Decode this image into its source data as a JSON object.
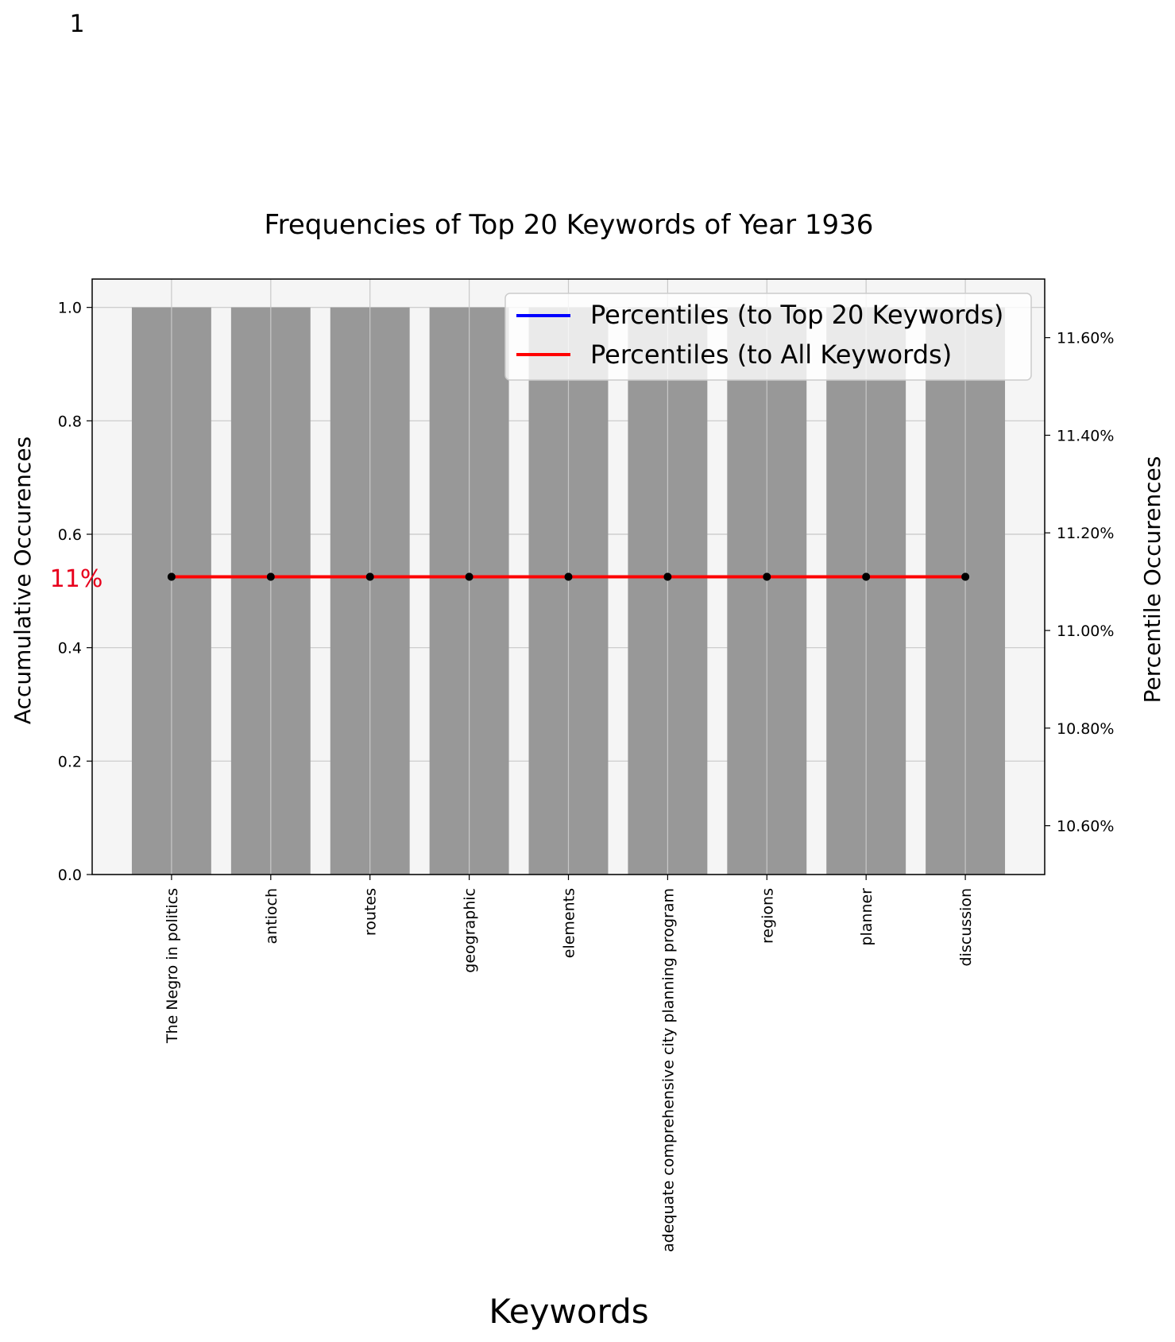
{
  "page_number": "1",
  "chart_data": {
    "type": "bar",
    "title": "Frequencies of Top 20 Keywords of Year 1936",
    "xlabel": "Keywords",
    "ylabel": "Accumulative Occurences",
    "y2label": "Percentile Occurences",
    "categories": [
      "The Negro in politics",
      "antioch",
      "routes",
      "geographic",
      "elements",
      "adequate comprehensive city planning program",
      "regions",
      "planner",
      "discussion"
    ],
    "values": [
      1,
      1,
      1,
      1,
      1,
      1,
      1,
      1,
      1
    ],
    "ylim": [
      0,
      1.05
    ],
    "yticks": [
      "0.0",
      "0.2",
      "0.4",
      "0.6",
      "0.8",
      "1.0"
    ],
    "y2lim": [
      10.5,
      11.72
    ],
    "y2ticks": [
      "10.60%",
      "10.80%",
      "11.00%",
      "11.20%",
      "11.40%",
      "11.60%"
    ],
    "y2tick_values": [
      10.6,
      10.8,
      11.0,
      11.2,
      11.4,
      11.6
    ],
    "series": [
      {
        "name": "Percentiles (to Top 20 Keywords)",
        "color": "#0000ff",
        "values": [
          11.11,
          11.11,
          11.11,
          11.11,
          11.11,
          11.11,
          11.11,
          11.11,
          11.11
        ]
      },
      {
        "name": "Percentiles (to All Keywords)",
        "color": "#ff0000",
        "values": [
          11.11,
          11.11,
          11.11,
          11.11,
          11.11,
          11.11,
          11.11,
          11.11,
          11.11
        ]
      }
    ],
    "annotation": "11%",
    "annotation_color": "#e8001c",
    "bar_color": "#989898",
    "plot_background": "#f5f5f5",
    "grid": true,
    "legend_position": "top-right"
  }
}
